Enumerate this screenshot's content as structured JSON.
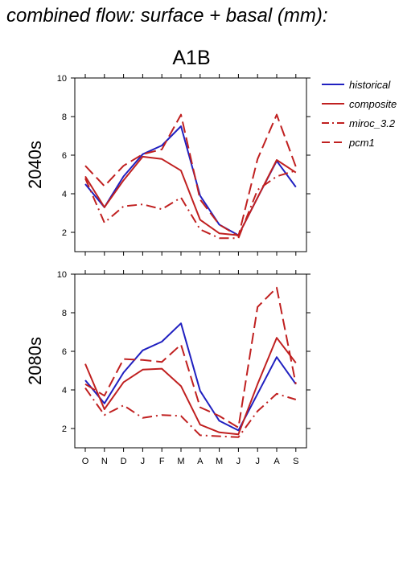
{
  "figure": {
    "title": "combined flow: surface + basal (mm):",
    "scenario": "A1B"
  },
  "chart_data": [
    {
      "type": "line",
      "panel_label": "2040s",
      "categories": [
        "O",
        "N",
        "D",
        "J",
        "F",
        "M",
        "A",
        "M",
        "J",
        "J",
        "A",
        "S"
      ],
      "ylim": [
        1,
        10
      ],
      "yticks": [
        2,
        4,
        6,
        8,
        10
      ],
      "grid": false,
      "legend_position": "right",
      "series": [
        {
          "name": "historical",
          "color": "#2020c0",
          "style": "solid",
          "values": [
            4.5,
            3.3,
            4.9,
            6.05,
            6.5,
            7.5,
            3.9,
            2.4,
            1.85,
            3.8,
            5.7,
            4.35
          ]
        },
        {
          "name": "composite",
          "color": "#c02020",
          "style": "solid",
          "values": [
            4.9,
            3.3,
            4.7,
            5.92,
            5.8,
            5.2,
            2.65,
            1.95,
            1.85,
            3.8,
            5.75,
            5.1
          ]
        },
        {
          "name": "miroc_3.2",
          "color": "#c02020",
          "style": "dashdot",
          "values": [
            4.8,
            2.5,
            3.35,
            3.45,
            3.2,
            3.8,
            2.15,
            1.7,
            1.7,
            4.2,
            4.9,
            5.2
          ]
        },
        {
          "name": "pcm1",
          "color": "#c02020",
          "style": "dash",
          "values": [
            5.45,
            4.4,
            5.45,
            6.05,
            6.3,
            8.1,
            3.7,
            2.4,
            1.8,
            5.8,
            8.1,
            5.4
          ]
        }
      ]
    },
    {
      "type": "line",
      "panel_label": "2080s",
      "categories": [
        "O",
        "N",
        "D",
        "J",
        "F",
        "M",
        "A",
        "M",
        "J",
        "J",
        "A",
        "S"
      ],
      "ylim": [
        1,
        10
      ],
      "yticks": [
        2,
        4,
        6,
        8,
        10
      ],
      "grid": false,
      "series": [
        {
          "name": "historical",
          "color": "#2020c0",
          "style": "solid",
          "values": [
            4.5,
            3.3,
            4.9,
            6.05,
            6.5,
            7.45,
            3.95,
            2.4,
            1.9,
            3.8,
            5.7,
            4.3
          ]
        },
        {
          "name": "composite",
          "color": "#c02020",
          "style": "solid",
          "values": [
            5.35,
            3.0,
            4.4,
            5.05,
            5.1,
            4.2,
            2.2,
            1.8,
            1.7,
            4.3,
            6.7,
            5.4
          ]
        },
        {
          "name": "miroc_3.2",
          "color": "#c02020",
          "style": "dashdot",
          "values": [
            4.1,
            2.7,
            3.2,
            2.55,
            2.7,
            2.65,
            1.65,
            1.6,
            1.55,
            2.9,
            3.8,
            3.5
          ]
        },
        {
          "name": "pcm1",
          "color": "#c02020",
          "style": "dash",
          "values": [
            4.3,
            3.7,
            5.6,
            5.55,
            5.45,
            6.35,
            3.1,
            2.65,
            2.05,
            8.3,
            9.3,
            4.3
          ]
        }
      ]
    }
  ]
}
